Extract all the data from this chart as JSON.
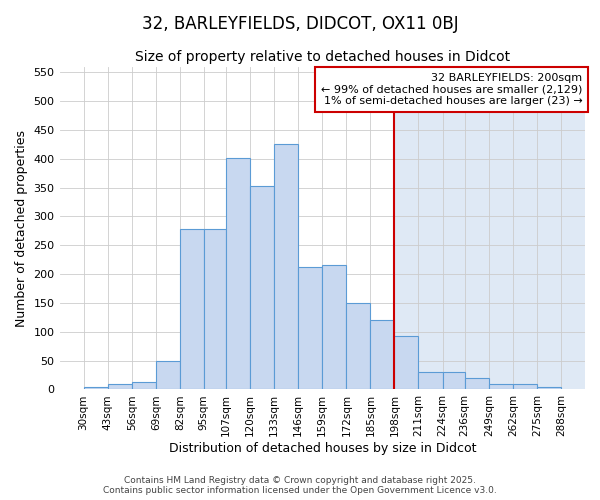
{
  "title": "32, BARLEYFIELDS, DIDCOT, OX11 0BJ",
  "subtitle": "Size of property relative to detached houses in Didcot",
  "xlabel": "Distribution of detached houses by size in Didcot",
  "ylabel": "Number of detached properties",
  "bar_left_edges": [
    30,
    43,
    56,
    69,
    82,
    95,
    107,
    120,
    133,
    146,
    159,
    172,
    185,
    198,
    211,
    224,
    236,
    249,
    262,
    275
  ],
  "bar_heights": [
    5,
    10,
    13,
    50,
    278,
    278,
    402,
    352,
    425,
    213,
    215,
    150,
    120,
    92,
    30,
    30,
    20,
    10,
    10,
    5
  ],
  "bar_widths": [
    13,
    13,
    13,
    13,
    13,
    12,
    13,
    13,
    13,
    13,
    13,
    13,
    13,
    13,
    13,
    12,
    13,
    13,
    13,
    13
  ],
  "tick_labels": [
    "30sqm",
    "43sqm",
    "56sqm",
    "69sqm",
    "82sqm",
    "95sqm",
    "107sqm",
    "120sqm",
    "133sqm",
    "146sqm",
    "159sqm",
    "172sqm",
    "185sqm",
    "198sqm",
    "211sqm",
    "224sqm",
    "236sqm",
    "249sqm",
    "262sqm",
    "275sqm",
    "288sqm"
  ],
  "tick_positions": [
    30,
    43,
    56,
    69,
    82,
    95,
    107,
    120,
    133,
    146,
    159,
    172,
    185,
    198,
    211,
    224,
    236,
    249,
    262,
    275,
    288
  ],
  "bar_color": "#c8d8f0",
  "bar_edge_color": "#5b9bd5",
  "highlight_color": "#dce8f8",
  "vline_x": 198,
  "vline_color": "#cc0000",
  "ylim": [
    0,
    560
  ],
  "xlim": [
    17,
    301
  ],
  "annotation_line1": "32 BARLEYFIELDS: 200sqm",
  "annotation_line2": "← 99% of detached houses are smaller (2,129)",
  "annotation_line3": "1% of semi-detached houses are larger (23) →",
  "annotation_box_color": "#ffffff",
  "annotation_box_edge_color": "#cc0000",
  "footer_line1": "Contains HM Land Registry data © Crown copyright and database right 2025.",
  "footer_line2": "Contains public sector information licensed under the Open Government Licence v3.0.",
  "background_left_color": "#ffffff",
  "background_right_color": "#dfe9f5",
  "grid_color": "#cccccc",
  "title_fontsize": 12,
  "subtitle_fontsize": 10,
  "label_fontsize": 9,
  "tick_fontsize": 7.5,
  "annotation_fontsize": 8,
  "footer_fontsize": 6.5
}
